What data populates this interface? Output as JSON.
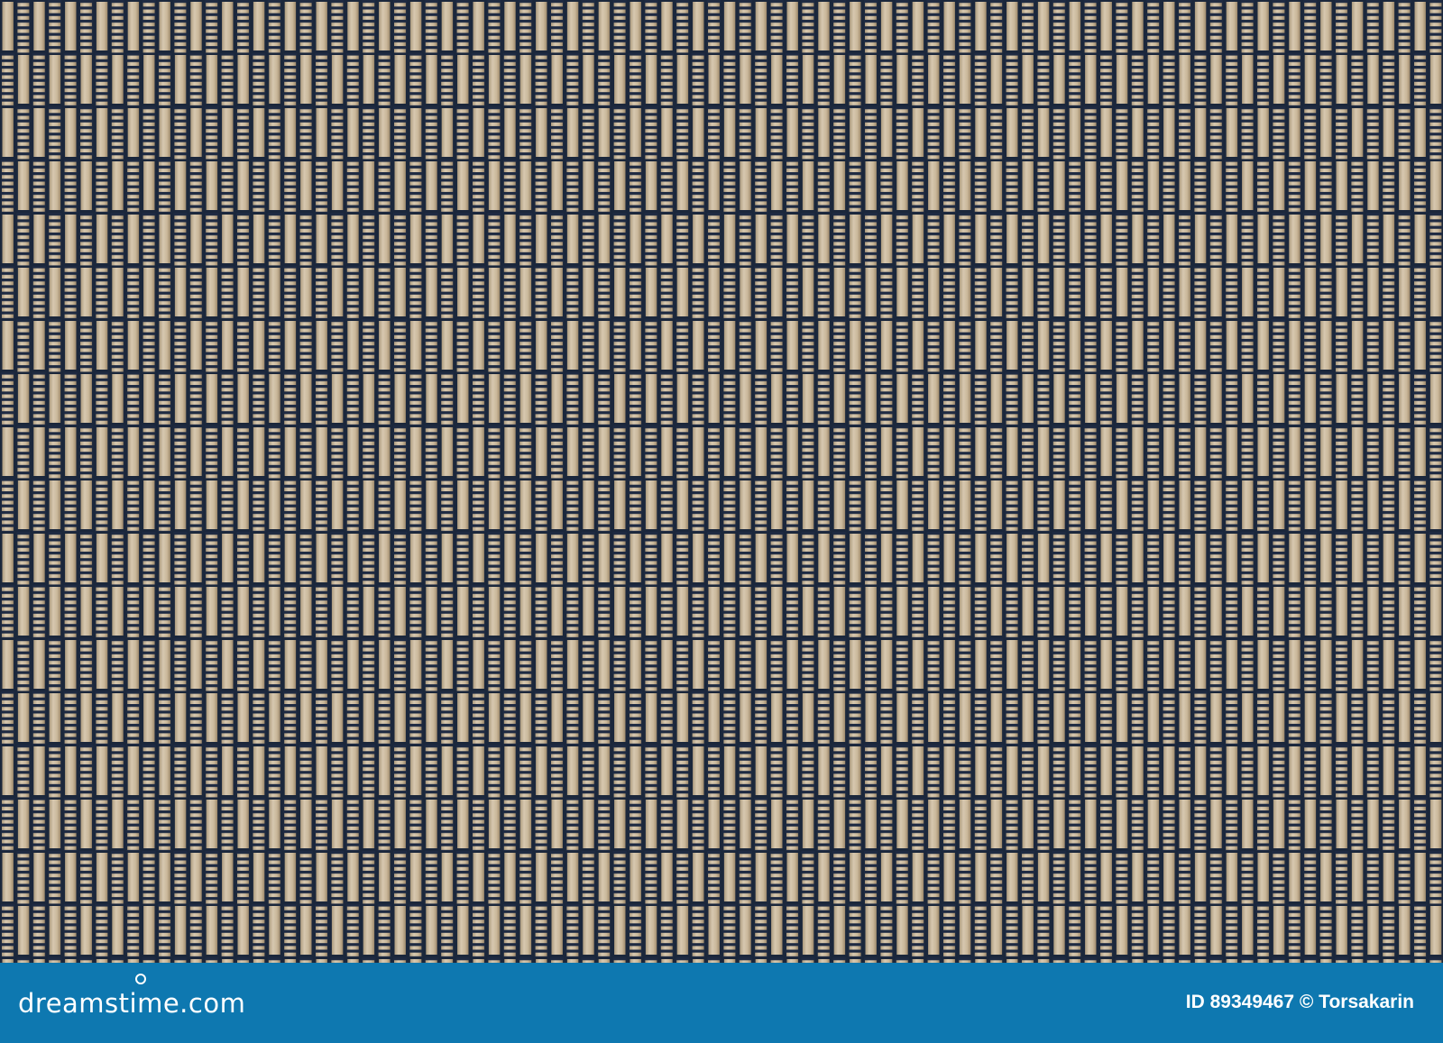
{
  "image": {
    "subject": "bamboo mat texture",
    "colors": {
      "bamboo": "#d9c3a0",
      "thread": "#1c2538",
      "footer": "#0e78b0"
    }
  },
  "footer": {
    "logo": "dreamstime.com",
    "credit": "ID 89349467 © Torsakarin"
  }
}
